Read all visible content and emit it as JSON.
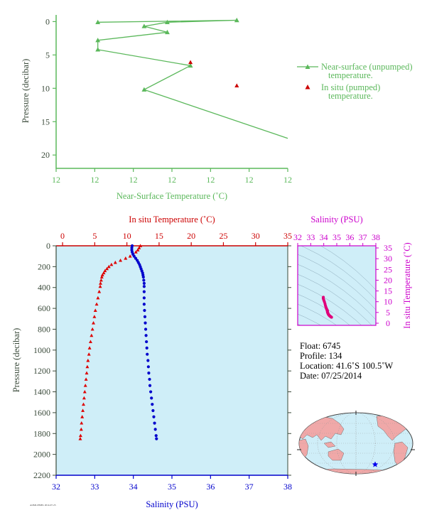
{
  "chart_data": [
    {
      "type": "line",
      "xlabel": "Near-Surface Temperature (˚C)",
      "ylabel": "Pressure (decibar)",
      "xlim": [
        11.8,
        12.3
      ],
      "ylim": [
        22,
        -1
      ],
      "x_tick_labels": [
        "12",
        "12",
        "12",
        "12",
        "12",
        "12",
        "12"
      ],
      "y_ticks": [
        0,
        5,
        10,
        15,
        20
      ],
      "legend": {
        "position": "right"
      },
      "series": [
        {
          "name": "Near-surface (unpumped) temperature.",
          "marker": "triangle",
          "color": "#5bb85b",
          "points": [
            {
              "t": 11.89,
              "p": 0.1
            },
            {
              "t": 12.19,
              "p": -0.2
            },
            {
              "t": 12.04,
              "p": 0.1
            },
            {
              "t": 11.99,
              "p": 0.7
            },
            {
              "t": 12.04,
              "p": 1.6
            },
            {
              "t": 11.89,
              "p": 2.8
            },
            {
              "t": 11.89,
              "p": 4.2
            },
            {
              "t": 12.09,
              "p": 6.6
            },
            {
              "t": 11.99,
              "p": 10.2
            },
            {
              "t": 12.3,
              "p": 17.5
            }
          ]
        },
        {
          "name": "In situ (pumped) temperature.",
          "marker": "triangle",
          "color": "#cc0000",
          "points": [
            {
              "t": 12.09,
              "p": 6.1
            },
            {
              "t": 12.19,
              "p": 9.6
            }
          ]
        }
      ]
    },
    {
      "type": "scatter",
      "ylabel": "Pressure (decibar)",
      "top_axis": {
        "label": "In situ Temperature (˚C)",
        "range": [
          -1,
          35
        ],
        "ticks": [
          0,
          5,
          10,
          15,
          20,
          25,
          30,
          35
        ]
      },
      "bottom_axis": {
        "label": "Salinity (PSU)",
        "range": [
          32,
          38
        ],
        "ticks": [
          32,
          33,
          34,
          35,
          36,
          37,
          38
        ]
      },
      "ylim": [
        2200,
        0
      ],
      "y_ticks": [
        0,
        200,
        400,
        600,
        800,
        1000,
        1200,
        1400,
        1600,
        1800,
        2000,
        2200
      ],
      "temperature_profile": [
        [
          12.1,
          0
        ],
        [
          11.9,
          20
        ],
        [
          11.7,
          40
        ],
        [
          11.4,
          60
        ],
        [
          11.0,
          80
        ],
        [
          10.5,
          100
        ],
        [
          9.8,
          120
        ],
        [
          9.0,
          140
        ],
        [
          8.2,
          160
        ],
        [
          7.6,
          180
        ],
        [
          7.2,
          200
        ],
        [
          6.9,
          220
        ],
        [
          6.6,
          240
        ],
        [
          6.4,
          260
        ],
        [
          6.2,
          280
        ],
        [
          6.1,
          300
        ],
        [
          6.0,
          330
        ],
        [
          5.9,
          360
        ],
        [
          5.85,
          390
        ],
        [
          5.7,
          440
        ],
        [
          5.5,
          500
        ],
        [
          5.3,
          560
        ],
        [
          5.1,
          620
        ],
        [
          4.95,
          680
        ],
        [
          4.8,
          740
        ],
        [
          4.65,
          800
        ],
        [
          4.5,
          860
        ],
        [
          4.35,
          920
        ],
        [
          4.2,
          980
        ],
        [
          4.1,
          1040
        ],
        [
          3.95,
          1100
        ],
        [
          3.85,
          1160
        ],
        [
          3.75,
          1220
        ],
        [
          3.65,
          1280
        ],
        [
          3.55,
          1340
        ],
        [
          3.45,
          1400
        ],
        [
          3.35,
          1460
        ],
        [
          3.25,
          1520
        ],
        [
          3.15,
          1580
        ],
        [
          3.05,
          1640
        ],
        [
          2.95,
          1700
        ],
        [
          2.9,
          1760
        ],
        [
          2.8,
          1820
        ],
        [
          2.75,
          1850
        ]
      ],
      "salinity_profile": [
        [
          33.97,
          0
        ],
        [
          33.96,
          20
        ],
        [
          33.96,
          40
        ],
        [
          33.97,
          60
        ],
        [
          33.99,
          80
        ],
        [
          34.02,
          100
        ],
        [
          34.06,
          120
        ],
        [
          34.1,
          140
        ],
        [
          34.13,
          160
        ],
        [
          34.16,
          180
        ],
        [
          34.18,
          200
        ],
        [
          34.2,
          220
        ],
        [
          34.22,
          240
        ],
        [
          34.24,
          260
        ],
        [
          34.25,
          280
        ],
        [
          34.26,
          300
        ],
        [
          34.27,
          330
        ],
        [
          34.28,
          360
        ],
        [
          34.28,
          390
        ],
        [
          34.28,
          440
        ],
        [
          34.28,
          500
        ],
        [
          34.28,
          560
        ],
        [
          34.29,
          620
        ],
        [
          34.3,
          680
        ],
        [
          34.31,
          740
        ],
        [
          34.32,
          800
        ],
        [
          34.33,
          860
        ],
        [
          34.34,
          920
        ],
        [
          34.35,
          980
        ],
        [
          34.36,
          1040
        ],
        [
          34.38,
          1100
        ],
        [
          34.39,
          1160
        ],
        [
          34.4,
          1220
        ],
        [
          34.42,
          1280
        ],
        [
          34.43,
          1340
        ],
        [
          34.45,
          1400
        ],
        [
          34.47,
          1460
        ],
        [
          34.49,
          1520
        ],
        [
          34.51,
          1580
        ],
        [
          34.53,
          1640
        ],
        [
          34.55,
          1700
        ],
        [
          34.57,
          1760
        ],
        [
          34.59,
          1820
        ],
        [
          34.6,
          1850
        ]
      ]
    },
    {
      "type": "scatter",
      "title": "Salinity (PSU)",
      "xlabel": "Salinity (PSU)",
      "ylabel": "In situ Temperature (˚C)",
      "xlim": [
        32,
        38
      ],
      "ylim": [
        -1,
        36
      ],
      "x_ticks": [
        32,
        33,
        34,
        35,
        36,
        37,
        38
      ],
      "y_ticks": [
        0,
        5,
        10,
        15,
        20,
        25,
        30,
        35
      ],
      "points_color": "#e0007a"
    }
  ],
  "float_info": {
    "float": "Float:  6745",
    "profile": "Profile:  134",
    "location": "Location:  41.6˚S  100.5˚W",
    "date": "Date:  07/25/2014"
  },
  "map": {
    "marker_color": "#0000ee",
    "land_color": "#f0a8a8",
    "ocean_color": "#cfeef8"
  },
  "footer_note": "AOML/PMEL 2014-07-25"
}
